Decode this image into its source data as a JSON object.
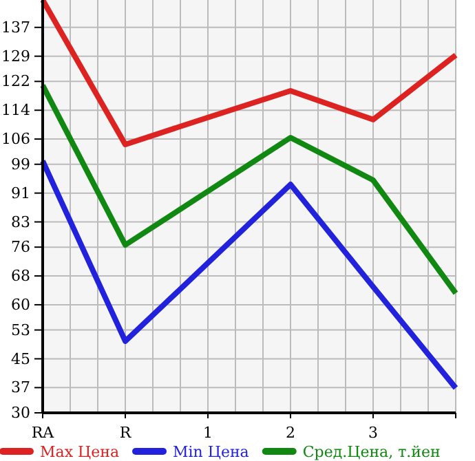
{
  "chart_data": {
    "type": "line",
    "categories": [
      "RA",
      "R",
      "1",
      "2",
      "3",
      null
    ],
    "series": [
      {
        "name": "Max Цена",
        "color": "#dd2222",
        "values": [
          144.6,
          104.5,
          112,
          119.4,
          111.4,
          129.3
        ]
      },
      {
        "name": "Min Цена",
        "color": "#2222dd",
        "values": [
          99.9,
          49.9,
          71.6,
          93.4,
          65,
          36.9
        ]
      },
      {
        "name": "Сред.Цена, т.йен",
        "color": "#118811",
        "values": [
          120.9,
          76.6,
          91.5,
          106.4,
          94.6,
          63.2
        ]
      }
    ],
    "ylim": [
      30,
      144.6
    ],
    "yticks": [
      30,
      37,
      45,
      53,
      60,
      68,
      76,
      83,
      91,
      99,
      106,
      114,
      122,
      129,
      137
    ],
    "grid": true,
    "legend": "bottom",
    "marker": "none",
    "line_style": "solid"
  }
}
